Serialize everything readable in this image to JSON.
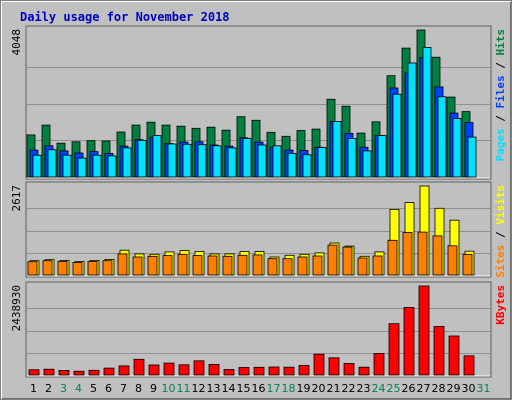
{
  "title": "Daily usage for November 2018",
  "colors": {
    "background": "#c0c0c0",
    "plot": "#c0c0c0",
    "grid": "#909090",
    "title": "#0000c0",
    "hits": "#008040",
    "files": "#0040ff",
    "pages": "#00e0ff",
    "visits": "#ffff00",
    "sites": "#ff8000",
    "kbytes": "#ff0000",
    "weekend_day": "#00805c",
    "weekday": "#000000"
  },
  "chart_data": [
    {
      "type": "bar",
      "panel": "hits-files-pages",
      "categories": [
        "1",
        "2",
        "3",
        "4",
        "5",
        "6",
        "7",
        "8",
        "9",
        "10",
        "11",
        "12",
        "13",
        "14",
        "15",
        "16",
        "17",
        "18",
        "19",
        "20",
        "21",
        "22",
        "23",
        "24",
        "25",
        "26",
        "27",
        "28",
        "29",
        "30",
        "31"
      ],
      "weekend_days": [
        "3",
        "4",
        "10",
        "11",
        "17",
        "18",
        "24",
        "25",
        "31"
      ],
      "ymax_label": "4048",
      "ylim": [
        0,
        4048
      ],
      "legend": [
        "Pages",
        "Files",
        "Hits"
      ],
      "grid": true,
      "series": [
        {
          "name": "Hits",
          "values": [
            1160,
            1430,
            930,
            970,
            1000,
            990,
            1240,
            1430,
            1510,
            1430,
            1400,
            1340,
            1370,
            1290,
            1660,
            1560,
            1230,
            1120,
            1280,
            1320,
            2140,
            1950,
            1210,
            1520,
            2790,
            3550,
            4048,
            3300,
            2200,
            1800,
            null
          ]
        },
        {
          "name": "Files",
          "values": [
            740,
            860,
            720,
            660,
            700,
            650,
            850,
            1030,
            1100,
            920,
            960,
            970,
            880,
            850,
            1080,
            960,
            830,
            740,
            730,
            820,
            1530,
            1200,
            820,
            1140,
            2450,
            2860,
            3290,
            2480,
            1760,
            1500,
            null
          ]
        },
        {
          "name": "Pages",
          "values": [
            600,
            750,
            600,
            520,
            600,
            580,
            800,
            1010,
            1140,
            910,
            900,
            890,
            860,
            800,
            1060,
            880,
            860,
            650,
            610,
            810,
            1530,
            1060,
            720,
            1140,
            2280,
            3140,
            3570,
            2210,
            1610,
            1100,
            null
          ]
        }
      ]
    },
    {
      "type": "bar",
      "panel": "visits-sites",
      "categories": [
        "1",
        "2",
        "3",
        "4",
        "5",
        "6",
        "7",
        "8",
        "9",
        "10",
        "11",
        "12",
        "13",
        "14",
        "15",
        "16",
        "17",
        "18",
        "19",
        "20",
        "21",
        "22",
        "23",
        "24",
        "25",
        "26",
        "27",
        "28",
        "29",
        "30",
        "31"
      ],
      "ymax_label": "2617",
      "ylim": [
        0,
        2617
      ],
      "legend": [
        "Sites",
        "Visits"
      ],
      "grid": true,
      "series": [
        {
          "name": "Visits",
          "values": [
            420,
            450,
            430,
            400,
            430,
            460,
            730,
            620,
            610,
            680,
            720,
            690,
            620,
            620,
            690,
            690,
            530,
            580,
            610,
            650,
            940,
            850,
            550,
            680,
            1930,
            2130,
            2617,
            1960,
            1610,
            700,
            null
          ]
        },
        {
          "name": "Sites",
          "values": [
            390,
            420,
            400,
            370,
            400,
            420,
            620,
            530,
            550,
            570,
            610,
            570,
            560,
            550,
            580,
            590,
            480,
            480,
            530,
            560,
            880,
            820,
            500,
            560,
            1020,
            1250,
            1260,
            1150,
            860,
            610,
            null
          ]
        }
      ]
    },
    {
      "type": "bar",
      "panel": "kbytes",
      "categories": [
        "1",
        "2",
        "3",
        "4",
        "5",
        "6",
        "7",
        "8",
        "9",
        "10",
        "11",
        "12",
        "13",
        "14",
        "15",
        "16",
        "17",
        "18",
        "19",
        "20",
        "21",
        "22",
        "23",
        "24",
        "25",
        "26",
        "27",
        "28",
        "29",
        "30",
        "31"
      ],
      "ymax_label": "2438930",
      "ylim": [
        0,
        2438930
      ],
      "legend": [
        "KBytes"
      ],
      "grid": true,
      "series": [
        {
          "name": "KBytes",
          "values": [
            145000,
            160000,
            125000,
            105000,
            130000,
            190000,
            250000,
            430000,
            275000,
            325000,
            280000,
            390000,
            290000,
            150000,
            205000,
            210000,
            220000,
            215000,
            260000,
            570000,
            470000,
            315000,
            215000,
            590000,
            1405000,
            1850000,
            2438930,
            1330000,
            1070000,
            525000,
            null
          ]
        }
      ]
    }
  ]
}
